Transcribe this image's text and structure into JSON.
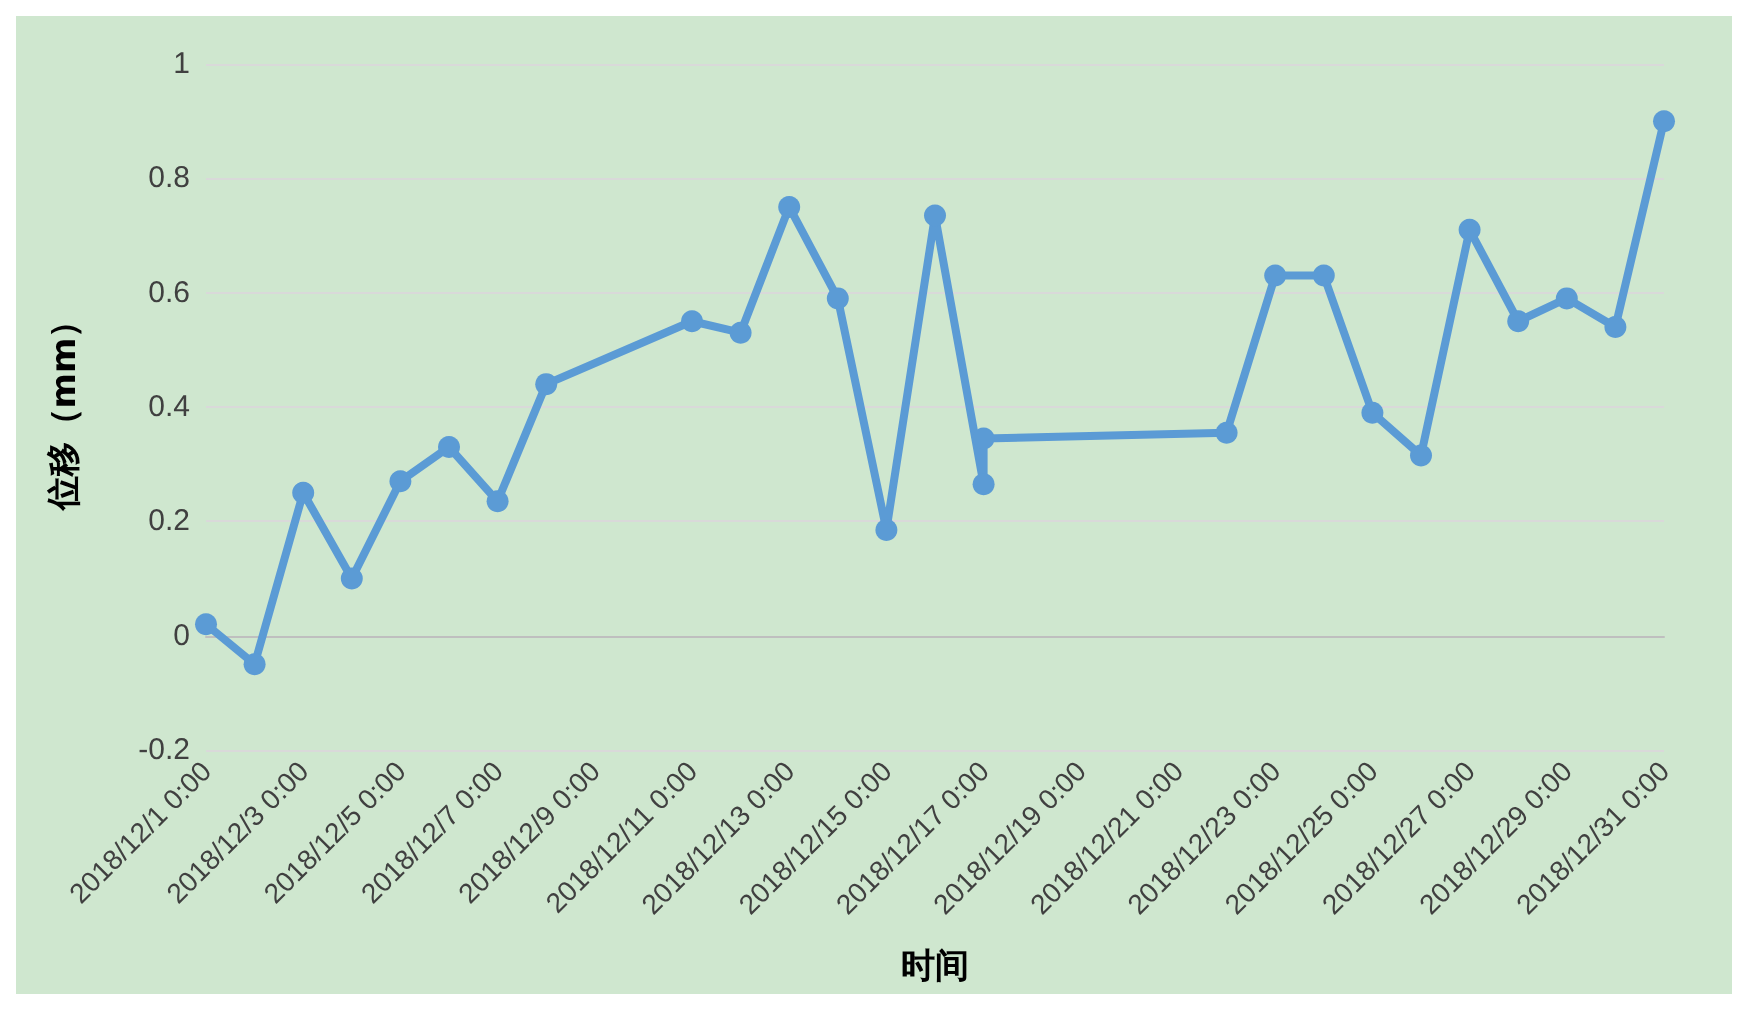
{
  "chart_data": {
    "type": "line",
    "xlabel": "时间",
    "ylabel": "位移（mm）",
    "x": [
      "2018-12-01",
      "2018-12-02",
      "2018-12-03",
      "2018-12-04",
      "2018-12-05",
      "2018-12-06",
      "2018-12-07",
      "2018-12-08",
      "2018-12-11",
      "2018-12-12",
      "2018-12-13",
      "2018-12-14",
      "2018-12-15",
      "2018-12-16",
      "2018-12-17",
      "2018-12-17",
      "2018-12-22",
      "2018-12-23",
      "2018-12-24",
      "2018-12-25",
      "2018-12-26",
      "2018-12-27",
      "2018-12-28",
      "2018-12-29",
      "2018-12-30",
      "2018-12-31"
    ],
    "series": [
      {
        "color": "#5b9bd5",
        "values": [
          0.02,
          -0.05,
          0.25,
          0.1,
          0.27,
          0.33,
          0.235,
          0.44,
          0.55,
          0.53,
          0.75,
          0.59,
          0.185,
          0.735,
          0.265,
          0.345,
          0.355,
          0.63,
          0.63,
          0.39,
          0.315,
          0.71,
          0.55,
          0.59,
          0.54,
          0.9
        ]
      }
    ],
    "xlim": [
      "2018-12-01",
      "2018-12-31"
    ],
    "xticks": [
      {
        "value": "2018-12-01",
        "label": "2018/12/1 0:00"
      },
      {
        "value": "2018-12-03",
        "label": "2018/12/3 0:00"
      },
      {
        "value": "2018-12-05",
        "label": "2018/12/5 0:00"
      },
      {
        "value": "2018-12-07",
        "label": "2018/12/7 0:00"
      },
      {
        "value": "2018-12-09",
        "label": "2018/12/9 0:00"
      },
      {
        "value": "2018-12-11",
        "label": "2018/12/11 0:00"
      },
      {
        "value": "2018-12-13",
        "label": "2018/12/13 0:00"
      },
      {
        "value": "2018-12-15",
        "label": "2018/12/15 0:00"
      },
      {
        "value": "2018-12-17",
        "label": "2018/12/17 0:00"
      },
      {
        "value": "2018-12-19",
        "label": "2018/12/19 0:00"
      },
      {
        "value": "2018-12-21",
        "label": "2018/12/21 0:00"
      },
      {
        "value": "2018-12-23",
        "label": "2018/12/23 0:00"
      },
      {
        "value": "2018-12-25",
        "label": "2018/12/25 0:00"
      },
      {
        "value": "2018-12-27",
        "label": "2018/12/27 0:00"
      },
      {
        "value": "2018-12-29",
        "label": "2018/12/29 0:00"
      },
      {
        "value": "2018-12-31",
        "label": "2018/12/31 0:00"
      }
    ],
    "ylim": [
      -0.2,
      1
    ],
    "yticks": [
      -0.2,
      0,
      0.2,
      0.4,
      0.6,
      0.8,
      1
    ],
    "grid": "y",
    "marker": "circle",
    "line_style": "solid"
  }
}
